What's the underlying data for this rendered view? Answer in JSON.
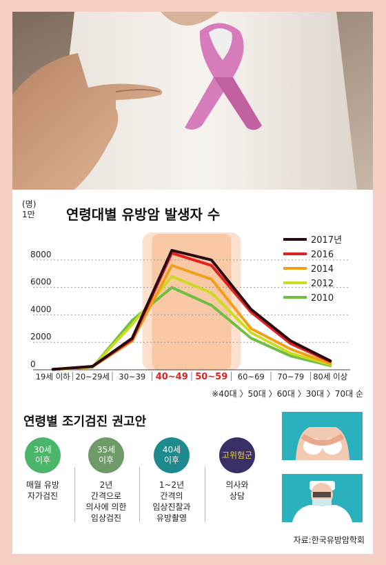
{
  "header": {
    "unit_label": "(명)",
    "unit_label2": "1만",
    "title": "연령대별 유방암 발생자 수"
  },
  "chart_data": {
    "type": "line",
    "title": "연령대별 유방암 발생자 수",
    "ylabel": "(명) 1만",
    "xlabel": "",
    "categories": [
      "19세 이하",
      "20~29세",
      "30~39",
      "40~49",
      "50~59",
      "60~69",
      "70~79",
      "80세 이상"
    ],
    "highlight_categories": [
      "40~49",
      "50~59"
    ],
    "yticks": [
      0,
      2000,
      4000,
      6000,
      8000
    ],
    "ylim": [
      0,
      10000
    ],
    "grid": true,
    "legend_position": "top-right",
    "series": [
      {
        "name": "2017년",
        "color": "#2a0a12",
        "values": [
          30,
          250,
          2300,
          8700,
          8000,
          4400,
          2100,
          650
        ]
      },
      {
        "name": "2016",
        "color": "#e42121",
        "values": [
          30,
          240,
          2200,
          8500,
          7600,
          4200,
          1900,
          600
        ]
      },
      {
        "name": "2014",
        "color": "#f0a019",
        "values": [
          30,
          220,
          2100,
          7600,
          6600,
          3000,
          1500,
          450
        ]
      },
      {
        "name": "2012",
        "color": "#cddb20",
        "values": [
          30,
          200,
          3300,
          6800,
          5600,
          2700,
          1200,
          380
        ]
      },
      {
        "name": "2010",
        "color": "#6fbe44",
        "values": [
          30,
          180,
          3600,
          6000,
          4700,
          2300,
          1000,
          300
        ]
      }
    ]
  },
  "note": "※40대 〉50대 〉60대 〉30대 〉70대 순",
  "recommendations": {
    "title": "연령별 조기검진 권고안",
    "items": [
      {
        "badge": "30세\n이후",
        "text": "매월 유방\n자가검진",
        "color": "#4bb56a"
      },
      {
        "badge": "35세\n이후",
        "text": "2년\n간격으로\n의사에 의한\n임상검진",
        "color": "#6e9b67"
      },
      {
        "badge": "40세\n이후",
        "text": "1~2년\n간격의\n임상진찰과\n유방촬영",
        "color": "#1e8a8d"
      },
      {
        "badge": "고위험군",
        "text": "의사와\n상담",
        "color": "#3a3068",
        "badge_text_color": "#f2d32b"
      }
    ]
  },
  "source": "자료:한국유방암학회",
  "icons": {
    "photo": "pink-ribbon-photo",
    "illus1": "breast-self-exam-illustration",
    "illus2": "doctor-illustration"
  }
}
